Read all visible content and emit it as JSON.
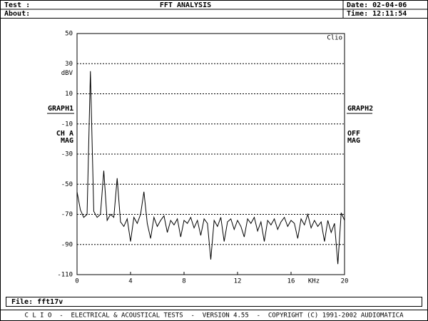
{
  "header": {
    "test": "Test :",
    "title": "FFT ANALYSIS",
    "date": "Date: 02-04-06",
    "about": "About:",
    "time": "Time: 12:11:54"
  },
  "left_panel": {
    "graph": "GRAPH1",
    "channel": "CH A",
    "mode": "MAG"
  },
  "right_panel": {
    "graph": "GRAPH2",
    "channel": "OFF",
    "mode": "MAG"
  },
  "file": "File: fft17v",
  "footer": "C L I O  -  ELECTRICAL & ACOUSTICAL TESTS  -  VERSION 4.55  -  COPYRIGHT (C) 1991-2002 AUDIOMATICA",
  "chart_data": {
    "type": "line",
    "logo": "Clio",
    "xlabel": "KHz",
    "ylabel": "dBV",
    "color": "#000000",
    "grid": true,
    "xlim": [
      0,
      20
    ],
    "xticks": [
      0,
      4,
      8,
      12,
      16,
      20
    ],
    "ylim": [
      -110,
      50
    ],
    "yticks": [
      50,
      30,
      10,
      -10,
      -30,
      -50,
      -70,
      -90,
      -110
    ],
    "x": [
      0,
      0.25,
      0.5,
      0.75,
      1,
      1.25,
      1.5,
      1.75,
      2,
      2.25,
      2.5,
      2.75,
      3,
      3.25,
      3.5,
      3.75,
      4,
      4.25,
      4.5,
      4.75,
      5,
      5.25,
      5.5,
      5.75,
      6,
      6.25,
      6.5,
      6.75,
      7,
      7.25,
      7.5,
      7.75,
      8,
      8.25,
      8.5,
      8.75,
      9,
      9.25,
      9.5,
      9.75,
      10,
      10.25,
      10.5,
      10.75,
      11,
      11.25,
      11.5,
      11.75,
      12,
      12.25,
      12.5,
      12.75,
      13,
      13.25,
      13.5,
      13.75,
      14,
      14.25,
      14.5,
      14.75,
      15,
      15.25,
      15.5,
      15.75,
      16,
      16.25,
      16.5,
      16.75,
      17,
      17.25,
      17.5,
      17.75,
      18,
      18.25,
      18.5,
      18.75,
      19,
      19.25,
      19.5,
      19.75,
      20
    ],
    "values": [
      -55,
      -67,
      -72,
      -70,
      25,
      -68,
      -72,
      -70,
      -41,
      -74,
      -70,
      -72,
      -46,
      -75,
      -78,
      -73,
      -88,
      -72,
      -76,
      -70,
      -55,
      -76,
      -86,
      -72,
      -78,
      -74,
      -71,
      -82,
      -74,
      -77,
      -73,
      -85,
      -74,
      -76,
      -72,
      -79,
      -74,
      -84,
      -73,
      -76,
      -100,
      -74,
      -78,
      -72,
      -88,
      -75,
      -73,
      -80,
      -74,
      -78,
      -85,
      -73,
      -76,
      -72,
      -81,
      -75,
      -88,
      -74,
      -77,
      -73,
      -80,
      -75,
      -72,
      -78,
      -74,
      -76,
      -86,
      -73,
      -77,
      -70,
      -79,
      -74,
      -78,
      -75,
      -88,
      -74,
      -82,
      -76,
      -103,
      -69,
      -74
    ]
  }
}
